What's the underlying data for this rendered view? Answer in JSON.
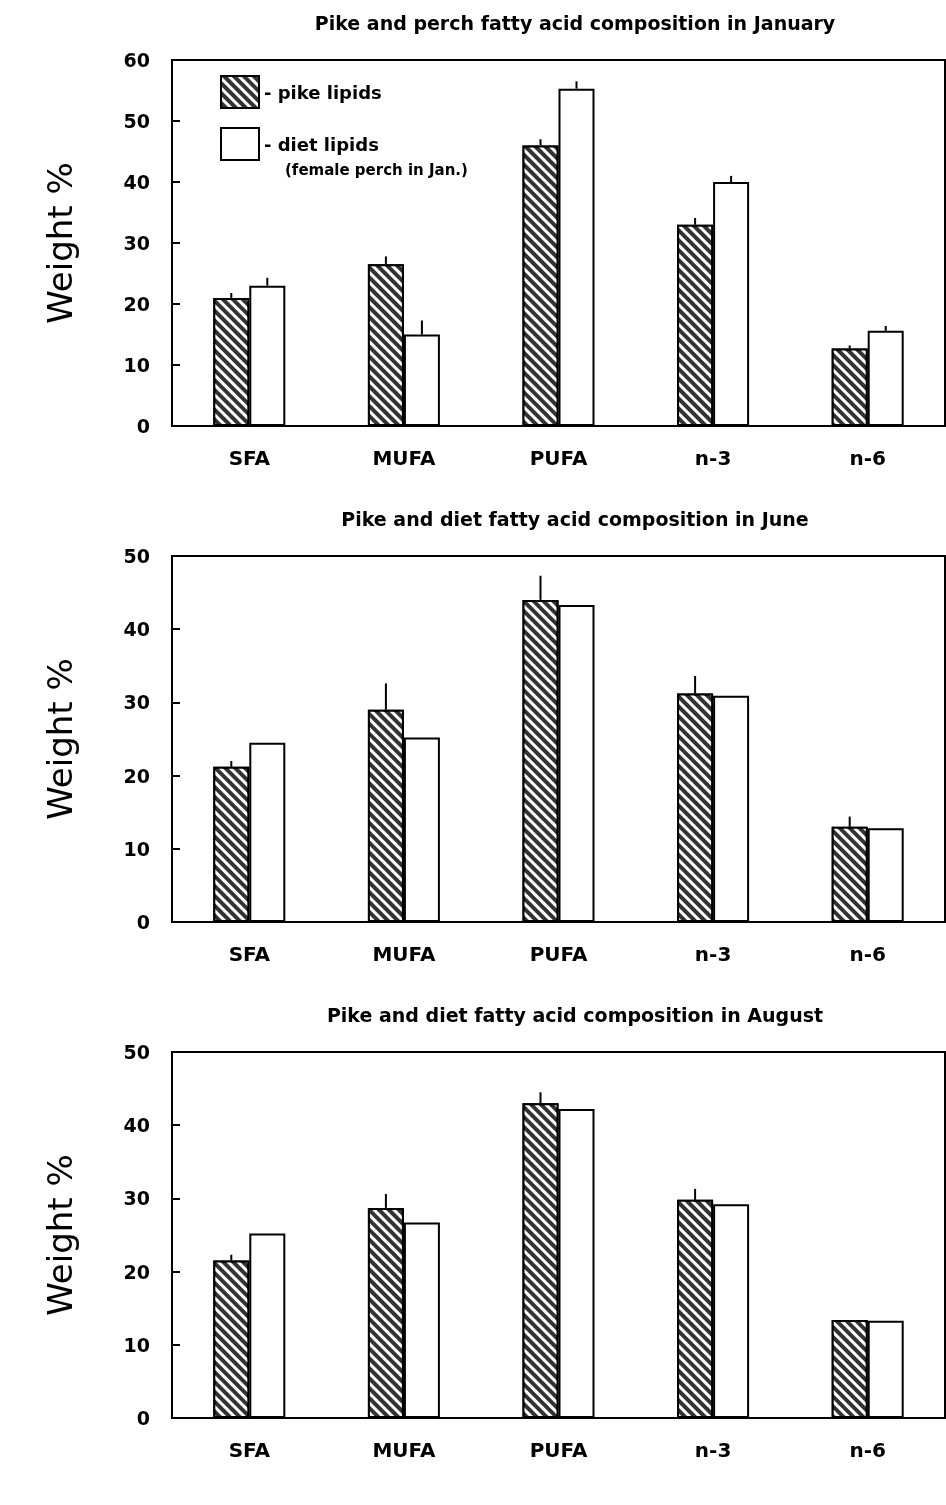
{
  "chart_data": [
    {
      "type": "bar",
      "title": "Pike and perch fatty acid composition in January",
      "ylabel": "Weight %",
      "categories": [
        "SFA",
        "MUFA",
        "PUFA",
        "n-3",
        "n-6"
      ],
      "ylim": [
        0,
        60
      ],
      "yticks": [
        0,
        10,
        20,
        30,
        40,
        50,
        60
      ],
      "grid": false,
      "legend": "top left",
      "annotations": [
        "(female perch in Jan.)"
      ],
      "series": [
        {
          "name": "- pike lipids",
          "color": "#333333",
          "values": [
            21,
            26.5,
            46,
            33,
            12.7
          ],
          "errors": [
            [
              21,
              21.8
            ],
            [
              26.5,
              27.8
            ],
            [
              46,
              47
            ],
            [
              33,
              34.1
            ],
            [
              12.7,
              13.2
            ]
          ]
        },
        {
          "name": "- diet lipids",
          "color": "#ffffff",
          "values": [
            23,
            15,
            55.3,
            40,
            15.6
          ],
          "errors": [
            [
              23,
              24.3
            ],
            [
              15,
              17.3
            ],
            [
              55.3,
              56.5
            ],
            [
              40,
              41
            ],
            [
              15.6,
              16.4
            ]
          ]
        }
      ]
    },
    {
      "type": "bar",
      "title": "Pike and diet fatty acid composition in June",
      "ylabel": "Weight %",
      "categories": [
        "SFA",
        "MUFA",
        "PUFA",
        "n-3",
        "n-6"
      ],
      "ylim": [
        0,
        50
      ],
      "yticks": [
        0,
        10,
        20,
        30,
        40,
        50
      ],
      "grid": false,
      "legend": false,
      "series": [
        {
          "color": "#333333",
          "values": [
            21.2,
            29,
            44,
            31.2,
            13
          ],
          "errors": [
            [
              21.2,
              22
            ],
            [
              29,
              32.6
            ],
            [
              44,
              47.3
            ],
            [
              31.2,
              33.6
            ],
            [
              13,
              14.4
            ]
          ]
        },
        {
          "color": "#ffffff",
          "values": [
            24.5,
            25.2,
            43.3,
            30.9,
            12.8
          ]
        }
      ]
    },
    {
      "type": "bar",
      "title": "Pike and diet fatty acid composition in August",
      "ylabel": "Weight %",
      "categories": [
        "SFA",
        "MUFA",
        "PUFA",
        "n-3",
        "n-6"
      ],
      "ylim": [
        0,
        50
      ],
      "yticks": [
        0,
        10,
        20,
        30,
        40,
        50
      ],
      "grid": false,
      "legend": false,
      "series": [
        {
          "color": "#333333",
          "values": [
            21.5,
            28.7,
            43,
            29.8,
            13.4
          ],
          "errors": [
            [
              21.5,
              22.3
            ],
            [
              28.7,
              30.6
            ],
            [
              43,
              44.5
            ],
            [
              29.8,
              31.3
            ],
            null
          ]
        },
        {
          "color": "#ffffff",
          "values": [
            25.2,
            26.7,
            42.2,
            29.2,
            13.3
          ]
        }
      ]
    }
  ]
}
